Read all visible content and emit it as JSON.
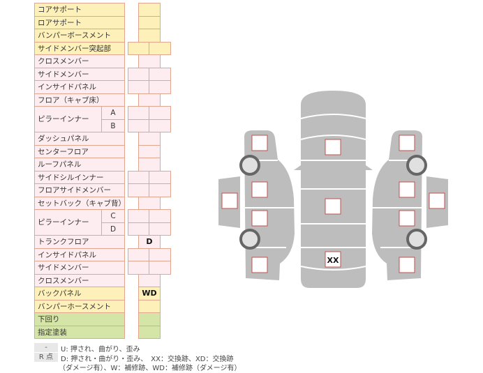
{
  "colors": {
    "yellow": "#fdf1b9",
    "pink": "#fdedf0",
    "green": "#d5e5a7",
    "border": "#e2a58e",
    "car_gray": "#bdbdbd"
  },
  "rows": [
    {
      "label": "コアサポート",
      "color": "yellow",
      "cells": 1
    },
    {
      "label": "ロアサポート",
      "color": "yellow",
      "cells": 1
    },
    {
      "label": "バンパーボースメント",
      "color": "yellow",
      "cells": 1
    },
    {
      "label": "サイドメンバー突起部",
      "color": "yellow",
      "cells": 2
    },
    {
      "label": "クロスメンバー",
      "color": "pink",
      "cells": 1
    },
    {
      "label": "サイドメンバー",
      "color": "pink",
      "cells": 2
    },
    {
      "label": "インサイドパネル",
      "color": "pink",
      "cells": 2
    },
    {
      "label": "フロア（キャブ床）",
      "color": "pink",
      "cells": 1
    },
    {
      "label": "ピラーインナー",
      "color": "pink",
      "cells": 2,
      "subs": [
        "A",
        "B"
      ]
    },
    {
      "label": "ダッシュパネル",
      "color": "pink",
      "cells": 1
    },
    {
      "label": "センターフロア",
      "color": "pink",
      "cells": 1
    },
    {
      "label": "ルーフパネル",
      "color": "pink",
      "cells": 1
    },
    {
      "label": "サイドシルインナー",
      "color": "pink",
      "cells": 2
    },
    {
      "label": "フロアサイドメンバー",
      "color": "pink",
      "cells": 2
    },
    {
      "label": "セットバック（キャブ背）",
      "color": "pink",
      "cells": 1
    },
    {
      "label": "ピラーインナー",
      "color": "pink",
      "cells": 2,
      "subs": [
        "C",
        "D"
      ]
    },
    {
      "label": "トランクフロア",
      "color": "pink",
      "cells": 1,
      "value": "D"
    },
    {
      "label": "インサイドパネル",
      "color": "pink",
      "cells": 2
    },
    {
      "label": "サイドメンバー",
      "color": "pink",
      "cells": 2
    },
    {
      "label": "クロスメンバー",
      "color": "pink",
      "cells": 1
    },
    {
      "label": "バックパネル",
      "color": "yellow",
      "cells": 1,
      "value": "WD"
    },
    {
      "label": "バンパーホースメント",
      "color": "yellow",
      "cells": 1
    },
    {
      "label": "下回り",
      "color": "green",
      "cells": 1
    },
    {
      "label": "指定塗装",
      "color": "green",
      "cells": 1
    }
  ],
  "legend": {
    "tag1": "-",
    "line1": "U: 押され、曲がり、歪み",
    "tag2": "R 点",
    "line2": "D: 押され・曲がり・歪み、　XX：交換跡、XD：交換跡",
    "line3": "（ダメージ有）、W：補修跡、WD：補修跡（ダメージ有）"
  },
  "diagram": {
    "roof_rear_mark": "XX"
  }
}
